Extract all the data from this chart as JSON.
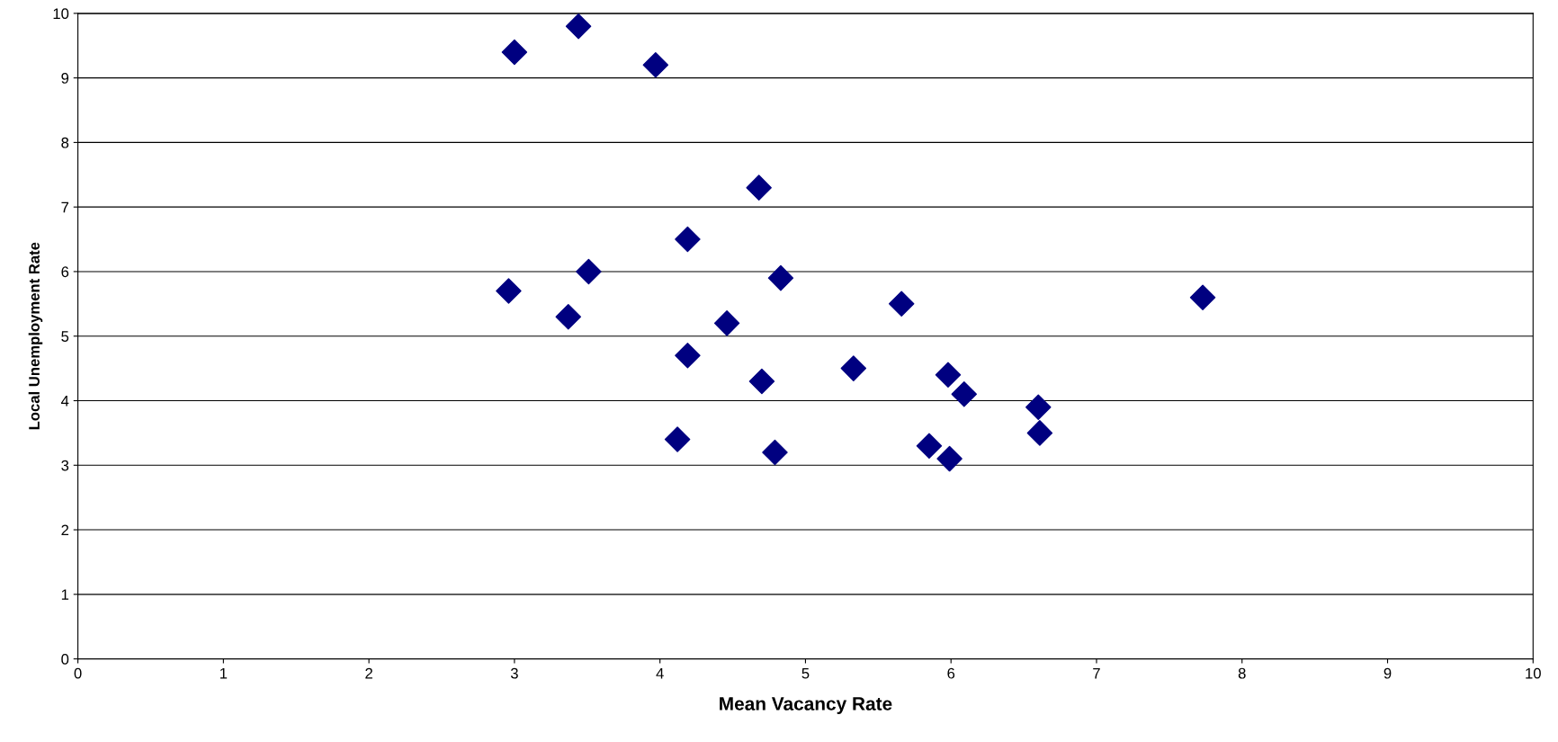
{
  "chart_data": {
    "type": "scatter",
    "xlabel": "Mean Vacancy Rate",
    "ylabel": "Local Unemployment Rate",
    "x": [
      3.0,
      3.44,
      3.97,
      4.68,
      4.19,
      3.51,
      2.96,
      3.37,
      4.83,
      4.46,
      4.19,
      4.7,
      4.12,
      4.79,
      5.33,
      5.66,
      5.98,
      6.09,
      5.85,
      5.99,
      6.6,
      6.61,
      7.73
    ],
    "series": [
      {
        "color": "#000080",
        "values": [
          9.4,
          9.8,
          9.2,
          7.3,
          6.5,
          6.0,
          5.7,
          5.3,
          5.9,
          5.2,
          4.7,
          4.3,
          3.4,
          3.2,
          4.5,
          5.5,
          4.4,
          4.1,
          3.3,
          3.1,
          3.9,
          3.5,
          5.6
        ]
      }
    ],
    "xlim": [
      0,
      10
    ],
    "xticks": [
      0,
      1,
      2,
      3,
      4,
      5,
      6,
      7,
      8,
      9,
      10
    ],
    "ylim": [
      0,
      10
    ],
    "yticks": [
      0,
      1,
      2,
      3,
      4,
      5,
      6,
      7,
      8,
      9,
      10
    ],
    "grid": "y",
    "marker": "diamond"
  }
}
